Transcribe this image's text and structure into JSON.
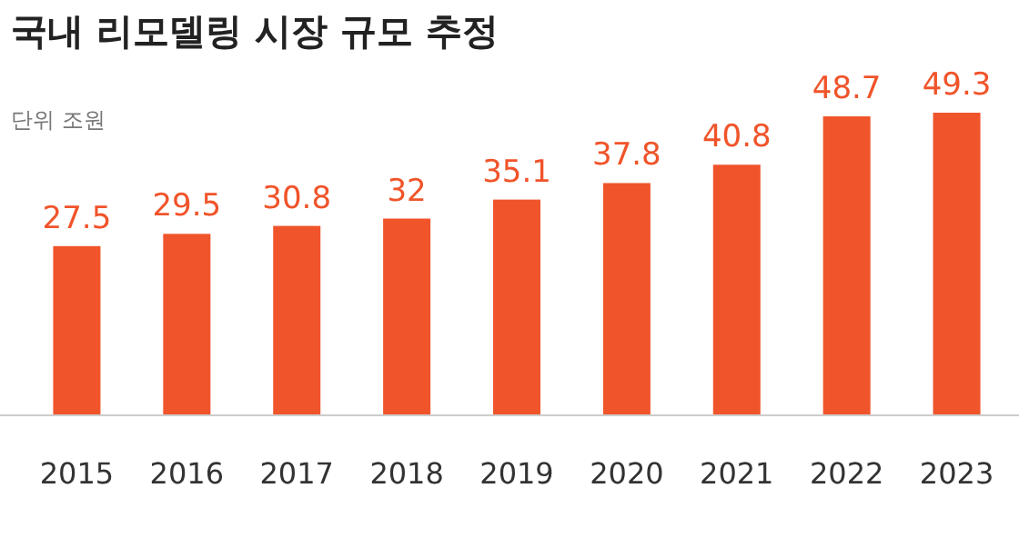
{
  "chart_data": {
    "type": "bar",
    "title": "국내 리모델링 시장 규모 추정",
    "subtitle": "단위 조원",
    "categories": [
      "2015",
      "2016",
      "2017",
      "2018",
      "2019",
      "2020",
      "2021",
      "2022",
      "2023"
    ],
    "values": [
      27.5,
      29.5,
      30.8,
      32,
      35.1,
      37.8,
      40.8,
      48.7,
      49.3
    ],
    "color": "#f0542a",
    "data_labels": true
  }
}
